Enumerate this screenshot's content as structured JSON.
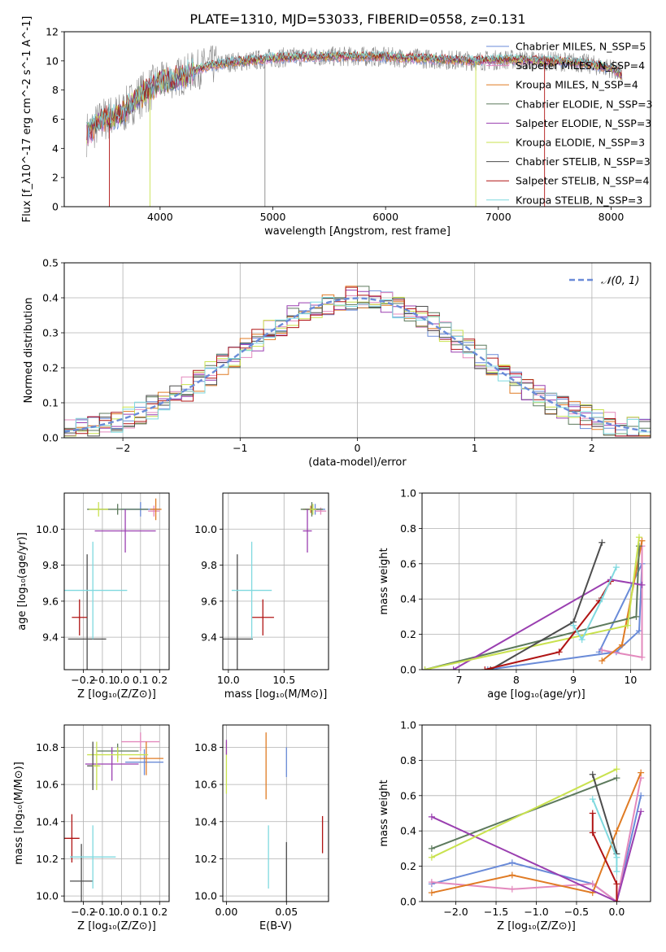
{
  "figure": {
    "title": "PLATE=1310, MJD=53033, FIBERID=0558, z=0.131"
  },
  "colors": {
    "blue": "#6a8bd8",
    "orange": "#e07b24",
    "darkgreen": "#5d7a5d",
    "purple": "#9a3fb0",
    "lime": "#c9e24f",
    "darkgray": "#4d4d4d",
    "darkred": "#b01414",
    "cyan": "#7fd9df",
    "pink": "#e389bd",
    "gray": "#888888",
    "grid": "#b0b0b0"
  },
  "chart_data": [
    {
      "id": "spectrum",
      "type": "line",
      "xlabel": "wavelength [Angstrom, rest frame]",
      "ylabel": "Flux [f_λ10^-17 erg cm^-2 s^-1 A^-1]",
      "xlim": [
        3150,
        8350
      ],
      "ylim": [
        0,
        12
      ],
      "xticks": [
        4000,
        5000,
        6000,
        7000,
        8000
      ],
      "yticks": [
        0,
        2,
        4,
        6,
        8,
        10,
        12
      ],
      "grid": false,
      "legend": "upper right",
      "legend_entries": [
        {
          "label": "Chabrier MILES, N_SSP=5",
          "color": "#6a8bd8"
        },
        {
          "label": "Salpeter MILES, N_SSP=4",
          "color": "#e389bd"
        },
        {
          "label": "Kroupa MILES, N_SSP=4",
          "color": "#e07b24"
        },
        {
          "label": "Chabrier ELODIE, N_SSP=3",
          "color": "#5d7a5d"
        },
        {
          "label": "Salpeter ELODIE, N_SSP=3",
          "color": "#9a3fb0"
        },
        {
          "label": "Kroupa ELODIE, N_SSP=3",
          "color": "#c9e24f"
        },
        {
          "label": "Chabrier STELIB, N_SSP=3",
          "color": "#4d4d4d"
        },
        {
          "label": "Salpeter STELIB, N_SSP=4",
          "color": "#b01414"
        },
        {
          "label": "Kroupa STELIB, N_SSP=3",
          "color": "#7fd9df"
        }
      ],
      "data_range": [
        3350,
        8100
      ],
      "model_continuum": {
        "x": [
          3350,
          3500,
          3650,
          3800,
          4000,
          4200,
          4400,
          4600,
          4800,
          5000,
          5300,
          5600,
          5900,
          6200,
          6500,
          6800,
          7100,
          7400,
          7700,
          8000,
          8100
        ],
        "y": [
          5.0,
          6.0,
          6.3,
          7.5,
          8.5,
          9.0,
          9.6,
          9.9,
          10.0,
          10.2,
          10.3,
          10.3,
          10.3,
          10.2,
          10.1,
          10.0,
          10.1,
          10.0,
          9.9,
          9.5,
          9.0
        ]
      },
      "dropouts": [
        {
          "x": 3550,
          "color": "#b01414"
        },
        {
          "x": 3910,
          "color": "#c9e24f"
        },
        {
          "x": 4930,
          "color": "#888888"
        },
        {
          "x": 6800,
          "color": "#c9e24f"
        },
        {
          "x": 7410,
          "color": "#b01414"
        }
      ]
    },
    {
      "id": "residuals",
      "type": "histogram",
      "xlabel": "(data-model)/error",
      "ylabel": "Normed distribution",
      "xlim": [
        -2.5,
        2.5
      ],
      "ylim": [
        0,
        0.5
      ],
      "xticks": [
        -2,
        -1,
        0,
        1,
        2
      ],
      "yticks": [
        0.0,
        0.1,
        0.2,
        0.3,
        0.4,
        0.5
      ],
      "grid": true,
      "legend": "upper right",
      "legend_entries": [
        {
          "label": "𝒩(0, 1)",
          "color": "#6a8bd8"
        }
      ],
      "bin_width": 0.1,
      "bins_start": -2.5,
      "series_colors": [
        "#6a8bd8",
        "#e389bd",
        "#e07b24",
        "#5d7a5d",
        "#9a3fb0",
        "#c9e24f",
        "#4d4d4d",
        "#b01414",
        "#7fd9df"
      ]
    },
    {
      "id": "age_vs_Z",
      "type": "scatter",
      "xlabel": "Z [log10(Z/Z⊙)]",
      "ylabel": "age [log10(age/yr)]",
      "xlim": [
        -0.3,
        0.25
      ],
      "ylim": [
        9.22,
        10.2
      ],
      "xticks": [
        -0.2,
        -0.1,
        0.0,
        0.1,
        0.2
      ],
      "yticks": [
        9.4,
        9.6,
        9.8,
        10.0
      ],
      "grid": true,
      "points": [
        {
          "x": 0.1,
          "y": 10.11,
          "xe": 0.1,
          "ye": 0.04,
          "color": "#6a8bd8"
        },
        {
          "x": 0.17,
          "y": 10.1,
          "xe": 0.03,
          "ye": 0.03,
          "color": "#e389bd"
        },
        {
          "x": 0.18,
          "y": 10.11,
          "xe": 0.03,
          "ye": 0.06,
          "color": "#e07b24"
        },
        {
          "x": -0.02,
          "y": 10.11,
          "xe": 0.16,
          "ye": 0.03,
          "color": "#5d7a5d"
        },
        {
          "x": 0.02,
          "y": 9.99,
          "xe": 0.16,
          "ye": 0.12,
          "color": "#9a3fb0"
        },
        {
          "x": -0.12,
          "y": 10.11,
          "xe": 0.05,
          "ye": 0.04,
          "color": "#c9e24f"
        },
        {
          "x": -0.18,
          "y": 9.39,
          "xe": 0.1,
          "ye": 0.47,
          "color": "#4d4d4d"
        },
        {
          "x": -0.22,
          "y": 9.51,
          "xe": 0.04,
          "ye": 0.1,
          "color": "#b01414"
        },
        {
          "x": -0.15,
          "y": 9.66,
          "xe": 0.18,
          "ye": 0.27,
          "color": "#7fd9df"
        }
      ]
    },
    {
      "id": "age_vs_mass",
      "type": "scatter",
      "xlabel": "mass [log10(M/M⊙)]",
      "ylabel": "",
      "xlim": [
        9.95,
        10.9
      ],
      "ylim": [
        9.22,
        10.2
      ],
      "xticks": [
        10.0,
        10.5
      ],
      "yticks": [
        9.4,
        9.6,
        9.8,
        10.0
      ],
      "grid": true,
      "points": [
        {
          "x": 10.78,
          "y": 10.11,
          "xe": 0.09,
          "ye": 0.03,
          "color": "#6a8bd8"
        },
        {
          "x": 10.83,
          "y": 10.1,
          "xe": 0.05,
          "ye": 0.02,
          "color": "#e389bd"
        },
        {
          "x": 10.74,
          "y": 10.11,
          "xe": 0.07,
          "ye": 0.02,
          "color": "#e07b24"
        },
        {
          "x": 10.75,
          "y": 10.11,
          "xe": 0.1,
          "ye": 0.04,
          "color": "#5d7a5d"
        },
        {
          "x": 10.71,
          "y": 9.99,
          "xe": 0.04,
          "ye": 0.12,
          "color": "#9a3fb0"
        },
        {
          "x": 10.76,
          "y": 10.11,
          "xe": 0.03,
          "ye": 0.03,
          "color": "#c9e24f"
        },
        {
          "x": 10.08,
          "y": 9.39,
          "xe": 0.14,
          "ye": 0.47,
          "color": "#4d4d4d"
        },
        {
          "x": 10.31,
          "y": 9.51,
          "xe": 0.1,
          "ye": 0.1,
          "color": "#b01414"
        },
        {
          "x": 10.21,
          "y": 9.66,
          "xe": 0.18,
          "ye": 0.27,
          "color": "#7fd9df"
        }
      ]
    },
    {
      "id": "weight_vs_age",
      "type": "line",
      "xlabel": "age [log10(age/yr)]",
      "ylabel": "mass weight",
      "xlim": [
        6.35,
        10.35
      ],
      "ylim": [
        0,
        1
      ],
      "xticks": [
        7,
        8,
        9,
        10
      ],
      "yticks": [
        0.0,
        0.2,
        0.4,
        0.6,
        0.8,
        1.0
      ],
      "grid": true,
      "series": [
        {
          "color": "#6a8bd8",
          "x": [
            7.5,
            9.75,
            10.15,
            10.2,
            9.45
          ],
          "y": [
            0.0,
            0.1,
            0.22,
            0.6,
            0.1
          ]
        },
        {
          "color": "#e389bd",
          "x": [
            9.5,
            10.2,
            10.2
          ],
          "y": [
            0.11,
            0.07,
            0.7
          ]
        },
        {
          "color": "#e07b24",
          "x": [
            9.5,
            9.85,
            10.2
          ],
          "y": [
            0.05,
            0.14,
            0.73
          ]
        },
        {
          "color": "#5d7a5d",
          "x": [
            6.4,
            10.1,
            10.15
          ],
          "y": [
            0.0,
            0.3,
            0.7
          ]
        },
        {
          "color": "#9a3fb0",
          "x": [
            6.9,
            9.65,
            10.2
          ],
          "y": [
            0.0,
            0.51,
            0.48
          ]
        },
        {
          "color": "#c9e24f",
          "x": [
            6.4,
            9.95,
            10.15
          ],
          "y": [
            0.0,
            0.25,
            0.75
          ]
        },
        {
          "color": "#4d4d4d",
          "x": [
            7.55,
            9.0,
            9.5
          ],
          "y": [
            0.0,
            0.27,
            0.72
          ]
        },
        {
          "color": "#b01414",
          "x": [
            7.45,
            8.75,
            9.45,
            9.65
          ],
          "y": [
            0.0,
            0.1,
            0.39,
            0.5
          ]
        },
        {
          "color": "#7fd9df",
          "x": [
            9.0,
            9.15,
            9.5,
            9.75
          ],
          "y": [
            0.25,
            0.17,
            0.4,
            0.58
          ]
        }
      ]
    },
    {
      "id": "mass_vs_Z",
      "type": "scatter",
      "xlabel": "Z [log10(Z/Z⊙)]",
      "ylabel": "mass [log10(M/M⊙)]",
      "xlim": [
        -0.3,
        0.25
      ],
      "ylim": [
        9.97,
        10.92
      ],
      "xticks": [
        -0.2,
        -0.1,
        0.0,
        0.1,
        0.2
      ],
      "yticks": [
        10.0,
        10.2,
        10.4,
        10.6,
        10.8
      ],
      "grid": true,
      "points": [
        {
          "x": 0.12,
          "y": 10.72,
          "xe": 0.1,
          "ye": 0.07,
          "color": "#6a8bd8"
        },
        {
          "x": 0.1,
          "y": 10.83,
          "xe": 0.1,
          "ye": 0.05,
          "color": "#e389bd"
        },
        {
          "x": 0.13,
          "y": 10.74,
          "xe": 0.09,
          "ye": 0.09,
          "color": "#e07b24"
        },
        {
          "x": -0.02,
          "y": 10.78,
          "xe": 0.11,
          "ye": 0.04,
          "color": "#5d7a5d"
        },
        {
          "x": -0.05,
          "y": 10.71,
          "xe": 0.14,
          "ye": 0.09,
          "color": "#9a3fb0"
        },
        {
          "x": -0.02,
          "y": 10.76,
          "xe": 0.16,
          "ye": 0.04,
          "color": "#c9e24f"
        },
        {
          "x": -0.21,
          "y": 10.08,
          "xe": 0.06,
          "ye": 0.2,
          "color": "#4d4d4d"
        },
        {
          "x": -0.26,
          "y": 10.31,
          "xe": 0.04,
          "ye": 0.13,
          "color": "#b01414"
        },
        {
          "x": -0.15,
          "y": 10.21,
          "xe": 0.12,
          "ye": 0.17,
          "color": "#7fd9df"
        },
        {
          "x": -0.15,
          "y": 10.7,
          "xe": 0.03,
          "ye": 0.13,
          "color": "#4d4d4d"
        },
        {
          "x": -0.13,
          "y": 10.7,
          "xe": 0.02,
          "ye": 0.13,
          "color": "#c9e24f"
        }
      ]
    },
    {
      "id": "mass_vs_ebv",
      "type": "scatter",
      "xlabel": "E(B-V)",
      "ylabel": "",
      "xlim": [
        -0.003,
        0.085
      ],
      "ylim": [
        9.97,
        10.92
      ],
      "xticks": [
        0.0,
        0.05
      ],
      "yticks": [
        10.0,
        10.2,
        10.4,
        10.6,
        10.8
      ],
      "grid": true,
      "points": [
        {
          "x": 0.0,
          "y": 10.69,
          "xe": 0.0,
          "ye": 0.14,
          "color": "#c9e24f"
        },
        {
          "x": 0.0,
          "y": 10.8,
          "xe": 0.0,
          "ye": 0.04,
          "color": "#9a3fb0"
        },
        {
          "x": 0.033,
          "y": 10.7,
          "xe": 0.0,
          "ye": 0.18,
          "color": "#e07b24"
        },
        {
          "x": 0.05,
          "y": 10.72,
          "xe": 0.0,
          "ye": 0.08,
          "color": "#6a8bd8"
        },
        {
          "x": 0.035,
          "y": 10.21,
          "xe": 0.0,
          "ye": 0.17,
          "color": "#7fd9df"
        },
        {
          "x": 0.05,
          "y": 10.1,
          "xe": 0.0,
          "ye": 0.19,
          "color": "#4d4d4d"
        },
        {
          "x": 0.08,
          "y": 10.33,
          "xe": 0.0,
          "ye": 0.1,
          "color": "#b01414"
        }
      ]
    },
    {
      "id": "weight_vs_Z",
      "type": "line",
      "xlabel": "Z [log10(Z/Z⊙)]",
      "ylabel": "mass weight",
      "xlim": [
        -2.42,
        0.42
      ],
      "ylim": [
        0,
        1
      ],
      "xticks": [
        -2.0,
        -1.5,
        -1.0,
        -0.5,
        0.0
      ],
      "yticks": [
        0.0,
        0.2,
        0.4,
        0.6,
        0.8,
        1.0
      ],
      "grid": true,
      "series": [
        {
          "color": "#6a8bd8",
          "x": [
            -2.3,
            -1.3,
            -0.3,
            0.0,
            0.3
          ],
          "y": [
            0.1,
            0.22,
            0.1,
            0.0,
            0.6
          ]
        },
        {
          "color": "#e389bd",
          "x": [
            -2.3,
            -1.3,
            -0.3,
            0.0,
            0.3
          ],
          "y": [
            0.11,
            0.07,
            0.1,
            0.0,
            0.7
          ]
        },
        {
          "color": "#e07b24",
          "x": [
            -2.3,
            -1.3,
            -0.3,
            0.0,
            0.3
          ],
          "y": [
            0.05,
            0.15,
            0.05,
            0.4,
            0.73
          ]
        },
        {
          "color": "#5d7a5d",
          "x": [
            -2.3,
            0.0
          ],
          "y": [
            0.3,
            0.7
          ]
        },
        {
          "color": "#9a3fb0",
          "x": [
            -2.3,
            0.0,
            0.3
          ],
          "y": [
            0.48,
            0.0,
            0.51
          ]
        },
        {
          "color": "#c9e24f",
          "x": [
            -2.3,
            0.0
          ],
          "y": [
            0.25,
            0.75
          ]
        },
        {
          "color": "#4d4d4d",
          "x": [
            -0.3,
            0.0
          ],
          "y": [
            0.72,
            0.27
          ]
        },
        {
          "color": "#b01414",
          "x": [
            -0.3,
            -0.3,
            0.0,
            0.0
          ],
          "y": [
            0.5,
            0.39,
            0.1,
            0.0
          ]
        },
        {
          "color": "#7fd9df",
          "x": [
            -0.3,
            0.0,
            0.0
          ],
          "y": [
            0.58,
            0.25,
            0.17
          ]
        }
      ]
    }
  ]
}
